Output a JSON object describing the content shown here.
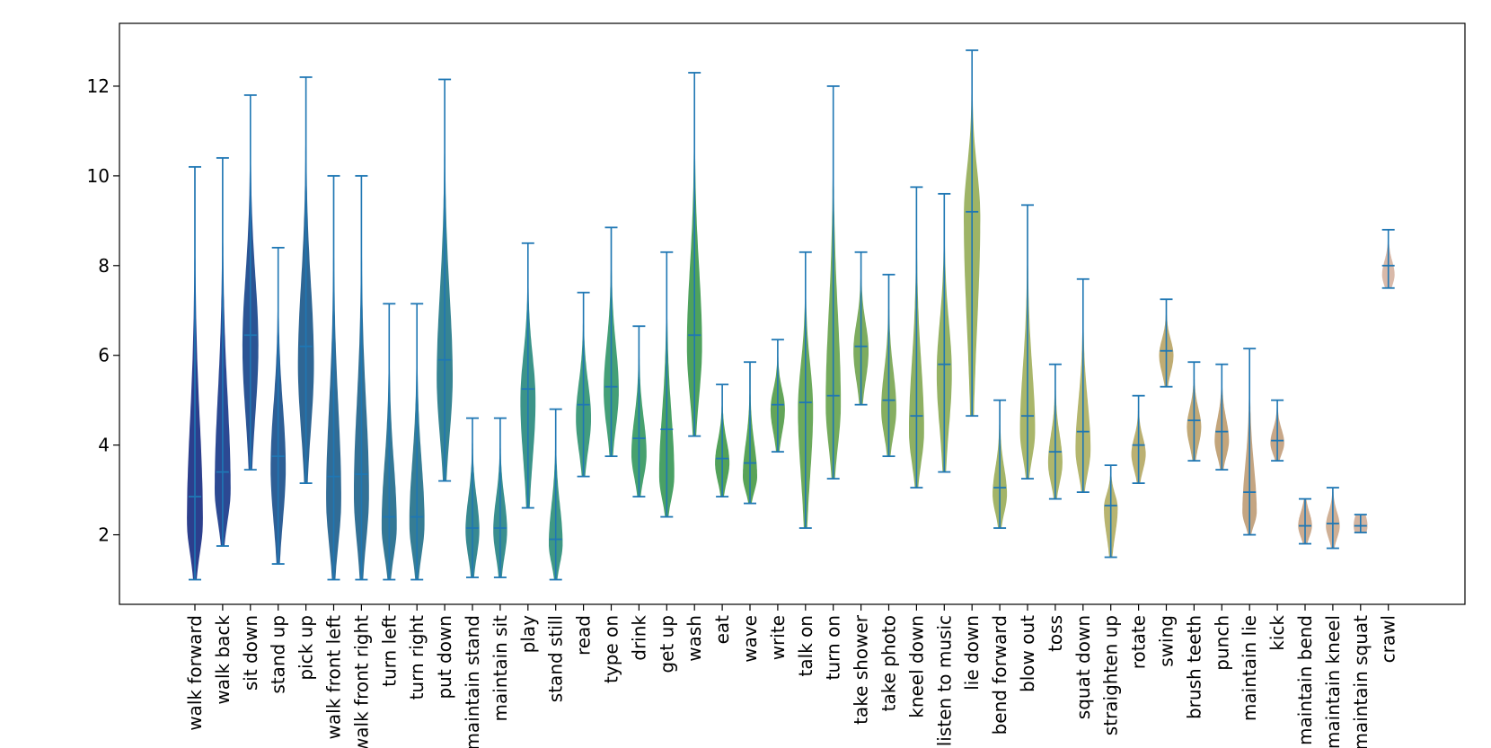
{
  "chart_data": {
    "type": "violin",
    "title": "",
    "xlabel": "",
    "ylabel": "",
    "ylim": [
      0.45,
      13.4
    ],
    "yticks": [
      2,
      4,
      6,
      8,
      10,
      12
    ],
    "ytick_labels": [
      "2",
      "4",
      "6",
      "8",
      "10",
      "12"
    ],
    "line_color": "#1f77b4",
    "categories": [
      {
        "label": "walk forward",
        "min": 1.0,
        "max": 10.2,
        "mean": 2.85,
        "peak": 2.3,
        "width": 0.58,
        "color": "#1b2f84"
      },
      {
        "label": "walk back",
        "min": 1.75,
        "max": 10.4,
        "mean": 3.4,
        "peak": 3.0,
        "width": 0.58,
        "color": "#1b3a8a"
      },
      {
        "label": "sit down",
        "min": 3.45,
        "max": 11.8,
        "mean": 6.45,
        "peak": 6.2,
        "width": 0.58,
        "color": "#1a468c"
      },
      {
        "label": "stand up",
        "min": 1.35,
        "max": 8.4,
        "mean": 3.75,
        "peak": 3.5,
        "width": 0.55,
        "color": "#1d528e"
      },
      {
        "label": "pick up",
        "min": 3.15,
        "max": 12.2,
        "mean": 6.2,
        "peak": 5.8,
        "width": 0.58,
        "color": "#1e5a8c"
      },
      {
        "label": "walk front left",
        "min": 1.0,
        "max": 10.0,
        "mean": 3.3,
        "peak": 2.8,
        "width": 0.55,
        "color": "#20608e"
      },
      {
        "label": "walk front right",
        "min": 1.0,
        "max": 10.0,
        "mean": 3.35,
        "peak": 2.9,
        "width": 0.55,
        "color": "#22668e"
      },
      {
        "label": "turn left",
        "min": 1.0,
        "max": 7.15,
        "mean": 2.4,
        "peak": 2.2,
        "width": 0.55,
        "color": "#236d8d"
      },
      {
        "label": "turn right",
        "min": 1.0,
        "max": 7.15,
        "mean": 2.4,
        "peak": 2.25,
        "width": 0.55,
        "color": "#25728c"
      },
      {
        "label": "put down",
        "min": 3.2,
        "max": 12.15,
        "mean": 5.9,
        "peak": 5.5,
        "width": 0.58,
        "color": "#267a8a"
      },
      {
        "label": "maintain stand",
        "min": 1.05,
        "max": 4.6,
        "mean": 2.15,
        "peak": 2.1,
        "width": 0.5,
        "color": "#288088"
      },
      {
        "label": "maintain sit",
        "min": 1.05,
        "max": 4.6,
        "mean": 2.15,
        "peak": 2.1,
        "width": 0.5,
        "color": "#2a8686"
      },
      {
        "label": "play",
        "min": 2.6,
        "max": 8.5,
        "mean": 5.25,
        "peak": 5.0,
        "width": 0.55,
        "color": "#2c8c80"
      },
      {
        "label": "stand still",
        "min": 1.0,
        "max": 4.8,
        "mean": 1.9,
        "peak": 1.8,
        "width": 0.5,
        "color": "#2f907a"
      },
      {
        "label": "read",
        "min": 3.3,
        "max": 7.4,
        "mean": 4.9,
        "peak": 4.6,
        "width": 0.55,
        "color": "#329474"
      },
      {
        "label": "type on",
        "min": 3.75,
        "max": 8.85,
        "mean": 5.3,
        "peak": 5.2,
        "width": 0.55,
        "color": "#35976c"
      },
      {
        "label": "drink",
        "min": 2.85,
        "max": 6.65,
        "mean": 4.15,
        "peak": 3.8,
        "width": 0.55,
        "color": "#389a62"
      },
      {
        "label": "get up",
        "min": 2.4,
        "max": 8.3,
        "mean": 4.35,
        "peak": 3.3,
        "width": 0.55,
        "color": "#3b9a58"
      },
      {
        "label": "wash",
        "min": 4.2,
        "max": 12.3,
        "mean": 6.45,
        "peak": 6.2,
        "width": 0.55,
        "color": "#3f9a50"
      },
      {
        "label": "eat",
        "min": 2.85,
        "max": 5.35,
        "mean": 3.7,
        "peak": 3.6,
        "width": 0.52,
        "color": "#449a4c"
      },
      {
        "label": "wave",
        "min": 2.7,
        "max": 5.85,
        "mean": 3.6,
        "peak": 3.3,
        "width": 0.52,
        "color": "#4c9c4a"
      },
      {
        "label": "write",
        "min": 3.85,
        "max": 6.35,
        "mean": 4.9,
        "peak": 4.8,
        "width": 0.52,
        "color": "#569e4c"
      },
      {
        "label": "talk on",
        "min": 2.15,
        "max": 8.3,
        "mean": 4.95,
        "peak": 4.8,
        "width": 0.55,
        "color": "#5fa24e"
      },
      {
        "label": "turn on",
        "min": 3.25,
        "max": 12.0,
        "mean": 5.1,
        "peak": 4.9,
        "width": 0.55,
        "color": "#69a450"
      },
      {
        "label": "take shower",
        "min": 4.9,
        "max": 8.3,
        "mean": 6.2,
        "peak": 6.1,
        "width": 0.55,
        "color": "#73a652"
      },
      {
        "label": "take photo",
        "min": 3.75,
        "max": 7.8,
        "mean": 5.0,
        "peak": 4.8,
        "width": 0.55,
        "color": "#7ca854"
      },
      {
        "label": "kneel down",
        "min": 3.05,
        "max": 9.75,
        "mean": 4.65,
        "peak": 4.3,
        "width": 0.55,
        "color": "#85aa56"
      },
      {
        "label": "listen to music",
        "min": 3.4,
        "max": 9.6,
        "mean": 5.8,
        "peak": 5.6,
        "width": 0.55,
        "color": "#8dac58"
      },
      {
        "label": "lie down",
        "min": 4.65,
        "max": 12.8,
        "mean": 9.2,
        "peak": 9.1,
        "width": 0.6,
        "color": "#96ae5a"
      },
      {
        "label": "bend forward",
        "min": 2.15,
        "max": 5.0,
        "mean": 3.05,
        "peak": 2.9,
        "width": 0.52,
        "color": "#9cae5c"
      },
      {
        "label": "blow out",
        "min": 3.25,
        "max": 9.35,
        "mean": 4.65,
        "peak": 4.3,
        "width": 0.55,
        "color": "#a2b05e"
      },
      {
        "label": "toss",
        "min": 2.8,
        "max": 5.8,
        "mean": 3.85,
        "peak": 3.6,
        "width": 0.52,
        "color": "#a8b060"
      },
      {
        "label": "squat down",
        "min": 2.95,
        "max": 7.7,
        "mean": 4.3,
        "peak": 3.9,
        "width": 0.55,
        "color": "#aeb062"
      },
      {
        "label": "straighten up",
        "min": 1.5,
        "max": 3.55,
        "mean": 2.65,
        "peak": 2.6,
        "width": 0.5,
        "color": "#b2ae64"
      },
      {
        "label": "rotate",
        "min": 3.15,
        "max": 5.1,
        "mean": 4.0,
        "peak": 3.8,
        "width": 0.52,
        "color": "#b6aa66"
      },
      {
        "label": "swing",
        "min": 5.3,
        "max": 7.25,
        "mean": 6.1,
        "peak": 6.0,
        "width": 0.52,
        "color": "#baa668"
      },
      {
        "label": "brush teeth",
        "min": 3.65,
        "max": 5.85,
        "mean": 4.55,
        "peak": 4.4,
        "width": 0.52,
        "color": "#bca26c"
      },
      {
        "label": "punch",
        "min": 3.45,
        "max": 5.8,
        "mean": 4.3,
        "peak": 4.1,
        "width": 0.52,
        "color": "#be9e70"
      },
      {
        "label": "maintain lie",
        "min": 2.0,
        "max": 6.15,
        "mean": 2.95,
        "peak": 2.5,
        "width": 0.52,
        "color": "#c09e78"
      },
      {
        "label": "kick",
        "min": 3.65,
        "max": 5.0,
        "mean": 4.1,
        "peak": 4.05,
        "width": 0.5,
        "color": "#c4a07e"
      },
      {
        "label": "maintain bend",
        "min": 1.8,
        "max": 2.8,
        "mean": 2.2,
        "peak": 2.2,
        "width": 0.5,
        "color": "#c8a486"
      },
      {
        "label": "maintain kneel",
        "min": 1.7,
        "max": 3.05,
        "mean": 2.25,
        "peak": 2.2,
        "width": 0.5,
        "color": "#ccaa8e"
      },
      {
        "label": "maintain squat",
        "min": 2.05,
        "max": 2.45,
        "mean": 2.2,
        "peak": 2.2,
        "width": 0.5,
        "color": "#d0ae98"
      },
      {
        "label": "crawl",
        "min": 7.5,
        "max": 8.8,
        "mean": 8.0,
        "peak": 7.8,
        "width": 0.45,
        "color": "#d6b4a2"
      }
    ]
  }
}
